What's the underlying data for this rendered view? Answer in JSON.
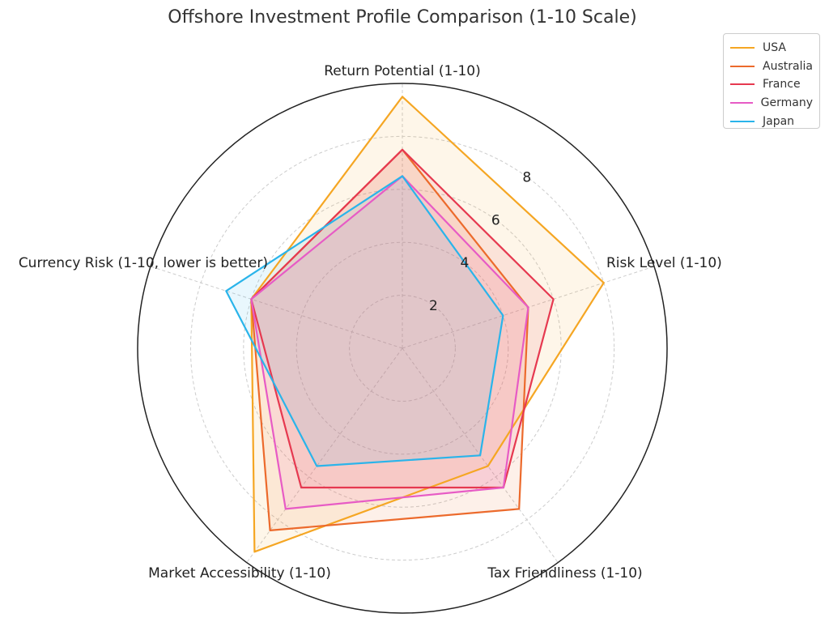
{
  "chart_data": {
    "type": "radar",
    "title": "Offshore Investment Profile Comparison (1-10 Scale)",
    "axes": [
      "Return Potential (1-10)",
      "Risk Level (1-10)",
      "Tax Friendliness (1-10)",
      "Market Accessibility (1-10)",
      "Currency Risk (1-10, lower is better)"
    ],
    "radial_ticks": [
      "2",
      "4",
      "6",
      "8"
    ],
    "rlim": [
      0,
      10
    ],
    "grid": true,
    "legend_position": "top-right",
    "series": [
      {
        "name": "USA",
        "color": "#f5a623",
        "values": [
          9.5,
          8.0,
          5.5,
          9.5,
          6.0
        ]
      },
      {
        "name": "Australia",
        "color": "#ec6a2c",
        "values": [
          7.5,
          5.0,
          7.5,
          8.5,
          6.0
        ]
      },
      {
        "name": "France",
        "color": "#e63950",
        "values": [
          7.5,
          6.0,
          6.5,
          6.5,
          6.0
        ]
      },
      {
        "name": "Germany",
        "color": "#e75bc5",
        "values": [
          6.5,
          5.0,
          6.5,
          7.5,
          6.0
        ]
      },
      {
        "name": "Japan",
        "color": "#2ab4ea",
        "values": [
          6.5,
          4.0,
          5.0,
          5.5,
          7.0
        ]
      }
    ]
  }
}
